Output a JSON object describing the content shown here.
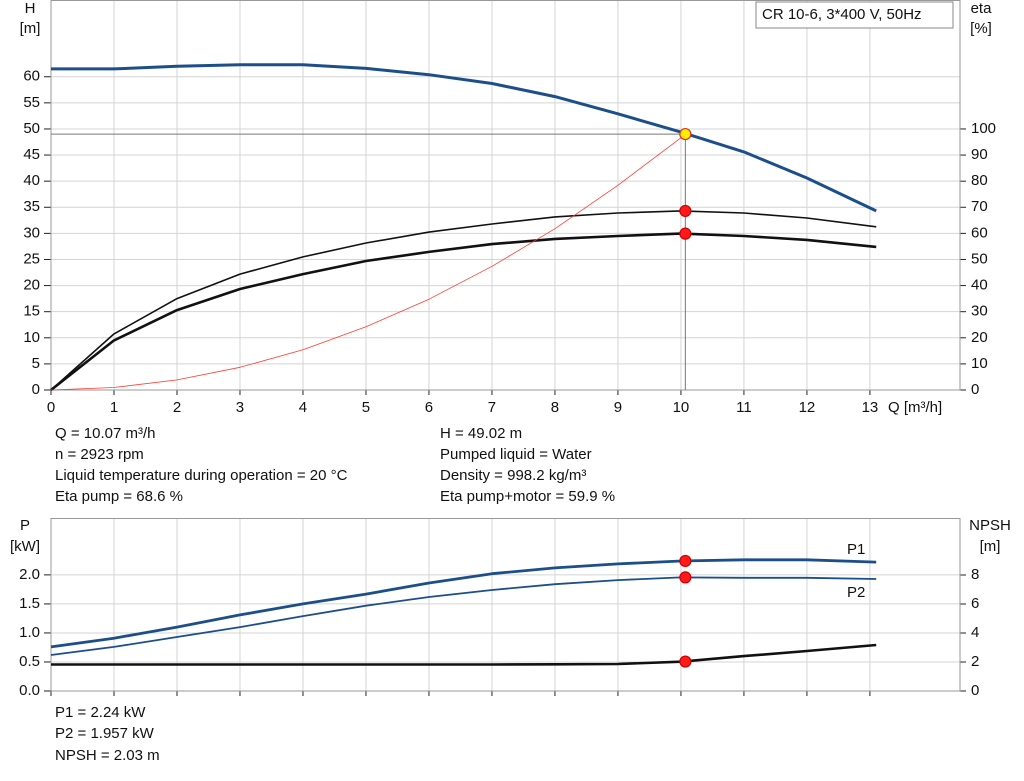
{
  "chart_data": [
    {
      "type": "line",
      "title": "CR 10-6, 3*400 V, 50Hz",
      "ylabel": "H",
      "yunit": "[m]",
      "y2label": "eta",
      "y2unit": "[%]",
      "xlabel": "Q [m³/h]",
      "xlim": [
        0,
        14.43
      ],
      "ylim": [
        0,
        74.7
      ],
      "y2lim": [
        0,
        149.4
      ],
      "xticks": [
        0,
        1,
        2,
        3,
        4,
        5,
        6,
        7,
        8,
        9,
        10,
        11,
        12,
        13
      ],
      "yticks": [
        0,
        5,
        10,
        15,
        20,
        25,
        30,
        35,
        40,
        45,
        50,
        55,
        60
      ],
      "y2ticks": [
        0,
        10,
        20,
        30,
        40,
        50,
        60,
        70,
        80,
        90,
        100
      ],
      "grid": true,
      "guides": true,
      "x": [
        0,
        1,
        2,
        3,
        4,
        5,
        6,
        7,
        8,
        9,
        10,
        11,
        12,
        13.1
      ],
      "series": [
        {
          "color": "#1c4f8a",
          "width": 3,
          "values": [
            61.5,
            61.5,
            62,
            62.3,
            62.3,
            61.6,
            60.4,
            58.7,
            56.2,
            52.9,
            49.4,
            45.6,
            40.6,
            34.3
          ]
        },
        {
          "color": "#111111",
          "width": 1.6,
          "axis": "y2",
          "values": [
            0,
            21.5,
            35,
            44.4,
            51,
            56.3,
            60.5,
            63.6,
            66.3,
            67.8,
            68.6,
            67.8,
            65.9,
            62.5
          ]
        },
        {
          "color": "#111111",
          "width": 2.6,
          "axis": "y2",
          "values": [
            0,
            19,
            30.6,
            38.7,
            44.4,
            49.4,
            52.9,
            55.9,
            57.9,
            59,
            59.9,
            59,
            57.5,
            54.8
          ]
        },
        {
          "color": "#ff3b30",
          "width": 0.8,
          "x": [
            0,
            1,
            2,
            3,
            4,
            5,
            6,
            7,
            8,
            9,
            10,
            10.07
          ],
          "values": [
            0,
            0.48,
            1.93,
            4.35,
            7.7,
            12.1,
            17.4,
            23.7,
            30.9,
            39.2,
            48.3,
            49.02
          ]
        }
      ],
      "operating_point": {
        "x": 10.07,
        "points": [
          {
            "value": 49.02,
            "axis": "y",
            "color": "#ffee00",
            "stroke": "#e03020"
          },
          {
            "value": 68.6,
            "axis": "y2",
            "color": "#ff1a1a",
            "stroke": "#cc0000"
          },
          {
            "value": 59.9,
            "axis": "y2",
            "color": "#ff1a1a",
            "stroke": "#cc0000"
          }
        ]
      }
    },
    {
      "type": "line",
      "ylabel": "P",
      "yunit": "[kW]",
      "y2label": "NPSH",
      "y2unit": "[m]",
      "xlim": [
        0,
        14.43
      ],
      "ylim": [
        0,
        2.98
      ],
      "y2lim": [
        0,
        11.93
      ],
      "xticks": [
        0,
        1,
        2,
        3,
        4,
        5,
        6,
        7,
        8,
        9,
        10,
        11,
        12,
        13
      ],
      "yticks": [
        {
          "value": 0,
          "label": "0.0"
        },
        0.5,
        {
          "value": 1,
          "label": "1.0"
        },
        1.5,
        {
          "value": 2,
          "label": "2.0"
        }
      ],
      "y2ticks": [
        0,
        2,
        4,
        6,
        8
      ],
      "grid": true,
      "guides": false,
      "x": [
        0,
        1,
        2,
        3,
        4,
        5,
        6,
        7,
        8,
        9,
        10,
        11,
        12,
        13.1
      ],
      "series": [
        {
          "name": "P1",
          "color": "#1c4f8a",
          "width": 2.8,
          "values": [
            0.76,
            0.91,
            1.1,
            1.31,
            1.5,
            1.67,
            1.86,
            2.02,
            2.12,
            2.19,
            2.24,
            2.26,
            2.26,
            2.22
          ]
        },
        {
          "name": "P2",
          "color": "#1c4f8a",
          "width": 1.8,
          "values": [
            0.62,
            0.76,
            0.93,
            1.1,
            1.29,
            1.47,
            1.62,
            1.74,
            1.84,
            1.91,
            1.957,
            1.95,
            1.95,
            1.93
          ]
        },
        {
          "color": "#111111",
          "width": 2.6,
          "axis": "y2",
          "values": [
            1.83,
            1.83,
            1.83,
            1.83,
            1.83,
            1.83,
            1.83,
            1.83,
            1.84,
            1.86,
            2.02,
            2.41,
            2.76,
            3.17
          ]
        }
      ],
      "operating_point": {
        "x": 10.07,
        "points": [
          {
            "value": 2.24,
            "axis": "y",
            "color": "#ff1a1a",
            "stroke": "#cc0000"
          },
          {
            "value": 1.957,
            "axis": "y",
            "color": "#ff1a1a",
            "stroke": "#cc0000"
          },
          {
            "value": 2.03,
            "axis": "y2",
            "color": "#ff1a1a",
            "stroke": "#cc0000"
          }
        ]
      }
    }
  ],
  "operating_info": {
    "left": [
      "Q = 10.07 m³/h",
      "n = 2923 rpm",
      "Liquid temperature during operation = 20 °C",
      "Eta pump = 68.6 %"
    ],
    "right": [
      "H = 49.02 m",
      "Pumped liquid = Water",
      "Density = 998.2 kg/m³",
      "Eta pump+motor = 59.9 %"
    ],
    "power": [
      "P1 = 2.24 kW",
      "P2 = 1.957 kW",
      "NPSH = 2.03 m"
    ]
  }
}
